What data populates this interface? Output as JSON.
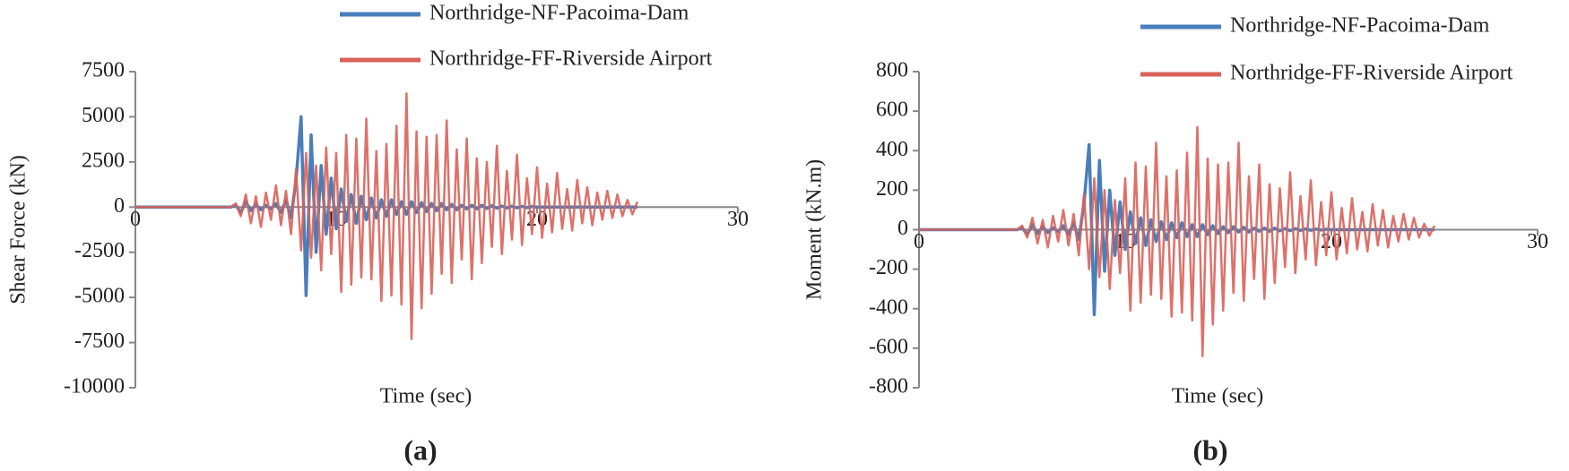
{
  "chart_data": [
    {
      "type": "line",
      "panel_label": "(a)",
      "xlabel": "Time (sec)",
      "ylabel": "Shear Force (kN)",
      "x": [
        0,
        0.25,
        0.5,
        0.75,
        1,
        1.25,
        1.5,
        1.75,
        2,
        2.25,
        2.5,
        2.75,
        3,
        3.25,
        3.5,
        3.75,
        4,
        4.25,
        4.5,
        4.75,
        5,
        5.25,
        5.5,
        5.75,
        6,
        6.25,
        6.5,
        6.75,
        7,
        7.25,
        7.5,
        7.75,
        8,
        8.25,
        8.5,
        8.75,
        9,
        9.25,
        9.5,
        9.75,
        10,
        10.25,
        10.5,
        10.75,
        11,
        11.25,
        11.5,
        11.75,
        12,
        12.25,
        12.5,
        12.75,
        13,
        13.25,
        13.5,
        13.75,
        14,
        14.25,
        14.5,
        14.75,
        15,
        15.25,
        15.5,
        15.75,
        16,
        16.25,
        16.5,
        16.75,
        17,
        17.25,
        17.5,
        17.75,
        18,
        18.25,
        18.5,
        18.75,
        19,
        19.25,
        19.5,
        19.75,
        20,
        20.25,
        20.5,
        20.75,
        21,
        21.25,
        21.5,
        21.75,
        22,
        22.25,
        22.5,
        22.75,
        23,
        23.25,
        23.5,
        23.75,
        24,
        24.25,
        24.5,
        24.75,
        25
      ],
      "series": [
        {
          "name": "Northridge-NF-Pacoima-Dam",
          "color": "#4a7ebb",
          "values": [
            0,
            0,
            0,
            0,
            0,
            0,
            0,
            0,
            0,
            0,
            0,
            0,
            0,
            0,
            0,
            0,
            0,
            0,
            0,
            0,
            100,
            -300,
            300,
            -200,
            150,
            -150,
            100,
            -100,
            200,
            -300,
            400,
            -600,
            1500,
            5000,
            -4900,
            4000,
            -2500,
            2300,
            -1500,
            1600,
            -1200,
            1000,
            -800,
            700,
            -900,
            600,
            -700,
            500,
            -600,
            400,
            -500,
            400,
            -400,
            300,
            -400,
            300,
            -300,
            250,
            -250,
            200,
            -200,
            200,
            -150,
            150,
            -150,
            100,
            -100,
            100,
            -100,
            100,
            -80,
            80,
            -60,
            60,
            -50,
            50,
            -40,
            40,
            -30,
            30,
            0,
            0,
            0,
            0,
            0,
            0,
            0,
            0,
            0,
            0,
            0,
            0,
            0,
            0,
            0,
            0,
            0,
            0,
            0,
            0,
            0
          ]
        },
        {
          "name": "Northridge-FF-Riverside Airport",
          "color": "#d9625a",
          "values": [
            0,
            0,
            0,
            0,
            0,
            0,
            0,
            0,
            0,
            0,
            0,
            0,
            0,
            0,
            0,
            0,
            0,
            0,
            0,
            0,
            200,
            -500,
            700,
            -900,
            600,
            -1100,
            800,
            -700,
            1200,
            -1000,
            900,
            -1500,
            2100,
            -2400,
            3000,
            -2800,
            2300,
            -3500,
            3300,
            -2600,
            3000,
            -4700,
            4000,
            -4300,
            3800,
            -3900,
            4900,
            -4000,
            3100,
            -5200,
            3500,
            -4900,
            4500,
            -5400,
            6300,
            -7300,
            4200,
            -5600,
            3900,
            -4800,
            4000,
            -3700,
            4800,
            -4200,
            3200,
            -2900,
            3800,
            -4000,
            2700,
            -3100,
            2500,
            -2200,
            3400,
            -2600,
            2000,
            -1800,
            2900,
            -2100,
            1600,
            -1500,
            2200,
            -1700,
            1300,
            -1400,
            1900,
            -1200,
            1000,
            -1300,
            1500,
            -900,
            1100,
            -1000,
            800,
            -700,
            900,
            -600,
            700,
            -500,
            400,
            -400,
            300
          ]
        }
      ],
      "xlim": [
        0,
        30
      ],
      "xticks": [
        0,
        10,
        20,
        30
      ],
      "ylim": [
        -10000,
        7500
      ],
      "yticks": [
        7500,
        5000,
        2500,
        0,
        -2500,
        -5000,
        -7500,
        -10000
      ],
      "grid": false
    },
    {
      "type": "line",
      "panel_label": "(b)",
      "xlabel": "Time (sec)",
      "ylabel": "Moment (kN.m)",
      "x": [
        0,
        0.25,
        0.5,
        0.75,
        1,
        1.25,
        1.5,
        1.75,
        2,
        2.25,
        2.5,
        2.75,
        3,
        3.25,
        3.5,
        3.75,
        4,
        4.25,
        4.5,
        4.75,
        5,
        5.25,
        5.5,
        5.75,
        6,
        6.25,
        6.5,
        6.75,
        7,
        7.25,
        7.5,
        7.75,
        8,
        8.25,
        8.5,
        8.75,
        9,
        9.25,
        9.5,
        9.75,
        10,
        10.25,
        10.5,
        10.75,
        11,
        11.25,
        11.5,
        11.75,
        12,
        12.25,
        12.5,
        12.75,
        13,
        13.25,
        13.5,
        13.75,
        14,
        14.25,
        14.5,
        14.75,
        15,
        15.25,
        15.5,
        15.75,
        16,
        16.25,
        16.5,
        16.75,
        17,
        17.25,
        17.5,
        17.75,
        18,
        18.25,
        18.5,
        18.75,
        19,
        19.25,
        19.5,
        19.75,
        20,
        20.25,
        20.5,
        20.75,
        21,
        21.25,
        21.5,
        21.75,
        22,
        22.25,
        22.5,
        22.75,
        23,
        23.25,
        23.5,
        23.75,
        24,
        24.25,
        24.5,
        24.75,
        25
      ],
      "series": [
        {
          "name": "Northridge-NF-Pacoima-Dam",
          "color": "#4a7ebb",
          "values": [
            0,
            0,
            0,
            0,
            0,
            0,
            0,
            0,
            0,
            0,
            0,
            0,
            0,
            0,
            0,
            0,
            0,
            0,
            0,
            0,
            10,
            -25,
            25,
            -20,
            15,
            -15,
            10,
            -10,
            20,
            -25,
            35,
            -50,
            130,
            430,
            -430,
            350,
            -210,
            200,
            -130,
            140,
            -100,
            90,
            -70,
            60,
            -80,
            50,
            -60,
            40,
            -50,
            35,
            -40,
            35,
            -35,
            25,
            -35,
            25,
            -25,
            20,
            -20,
            15,
            -15,
            15,
            -12,
            12,
            -12,
            8,
            -8,
            8,
            -8,
            8,
            -6,
            6,
            -5,
            5,
            -4,
            4,
            -3,
            3,
            -2,
            2,
            0,
            0,
            0,
            0,
            0,
            0,
            0,
            0,
            0,
            0,
            0,
            0,
            0,
            0,
            0,
            0,
            0,
            0,
            0,
            0,
            0
          ]
        },
        {
          "name": "Northridge-FF-Riverside Airport",
          "color": "#d9625a",
          "values": [
            0,
            0,
            0,
            0,
            0,
            0,
            0,
            0,
            0,
            0,
            0,
            0,
            0,
            0,
            0,
            0,
            0,
            0,
            0,
            0,
            20,
            -40,
            60,
            -70,
            50,
            -90,
            70,
            -60,
            100,
            -80,
            80,
            -130,
            180,
            -200,
            260,
            -240,
            200,
            -300,
            150,
            -220,
            260,
            -410,
            340,
            -370,
            320,
            -330,
            440,
            -350,
            270,
            -440,
            300,
            -420,
            390,
            -460,
            520,
            -640,
            360,
            -480,
            330,
            -410,
            340,
            -320,
            440,
            -360,
            270,
            -250,
            330,
            -350,
            230,
            -270,
            210,
            -190,
            290,
            -220,
            170,
            -150,
            250,
            -180,
            140,
            -130,
            190,
            -150,
            110,
            -120,
            160,
            -100,
            90,
            -110,
            130,
            -80,
            100,
            -90,
            70,
            -60,
            80,
            -50,
            60,
            -40,
            30,
            -30,
            20
          ]
        }
      ],
      "xlim": [
        0,
        30
      ],
      "xticks": [
        0,
        10,
        20,
        30
      ],
      "ylim": [
        -800,
        800
      ],
      "yticks": [
        800,
        600,
        400,
        200,
        0,
        -200,
        -400,
        -600,
        -800
      ],
      "grid": false
    }
  ]
}
